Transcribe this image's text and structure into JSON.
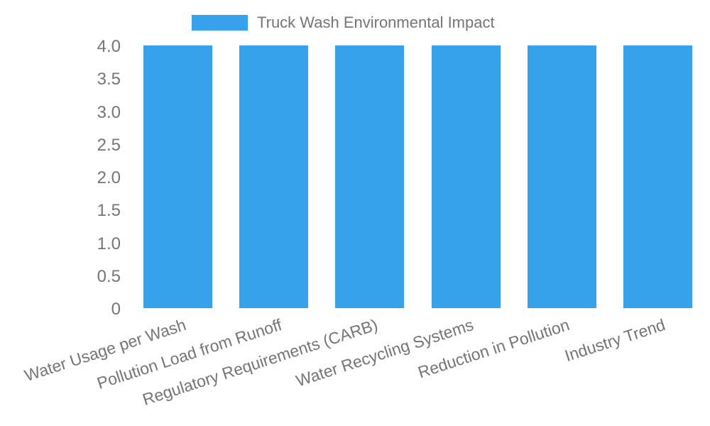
{
  "chart_data": {
    "type": "bar",
    "title": "",
    "legend": {
      "label": "Truck Wash Environmental Impact",
      "position": "top"
    },
    "categories": [
      "Water Usage per Wash",
      "Pollution Load from Runoff",
      "Regulatory Requirements (CARB)",
      "Water Recycling Systems",
      "Reduction in Pollution",
      "Industry Trend"
    ],
    "values": [
      4,
      4,
      4,
      4,
      4,
      4
    ],
    "xlabel": "",
    "ylabel": "",
    "ylim": [
      0,
      4
    ],
    "yticks": [
      0,
      0.5,
      1.0,
      1.5,
      2.0,
      2.5,
      3.0,
      3.5,
      4.0
    ],
    "ytick_labels": [
      "0",
      "0.5",
      "1.0",
      "1.5",
      "2.0",
      "2.5",
      "3.0",
      "3.5",
      "4.0"
    ],
    "x_label_rotation_deg": -18,
    "grid": false,
    "colors": {
      "bar": "#36A2EB",
      "text": "#757575",
      "background": "#ffffff"
    }
  }
}
